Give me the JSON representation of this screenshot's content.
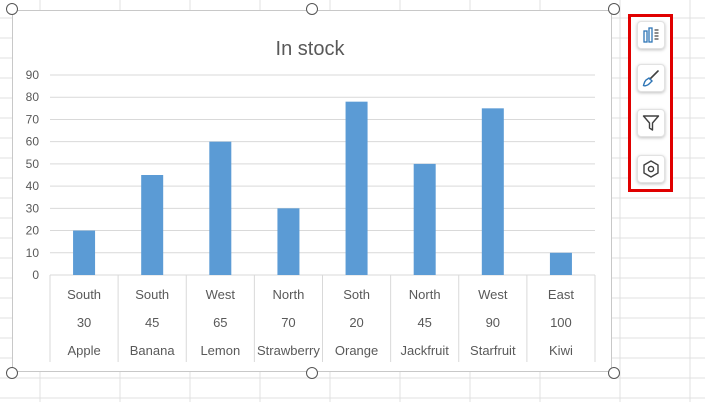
{
  "colors": {
    "bar": "#5b9bd5",
    "grid": "#d9d9d9",
    "axis_text": "#595959",
    "title_text": "#595959",
    "toolbar_highlight": "#e00000",
    "icon_blue": "#2e75b6",
    "icon_dark": "#404040"
  },
  "toolbar": {
    "buttons": [
      {
        "icon": "chart-elements-icon"
      },
      {
        "icon": "chart-styles-icon"
      },
      {
        "icon": "chart-filters-icon"
      },
      {
        "icon": "format-options-icon"
      }
    ]
  },
  "chart_data": {
    "type": "bar",
    "title": "In stock",
    "xlabel": "",
    "ylabel": "",
    "ylim": [
      0,
      90
    ],
    "yticks": [
      0,
      10,
      20,
      30,
      40,
      50,
      60,
      70,
      80,
      90
    ],
    "grid": true,
    "legend": "none",
    "categories": [
      [
        "South",
        "30",
        "Apple"
      ],
      [
        "South",
        "45",
        "Banana"
      ],
      [
        "West",
        "65",
        "Lemon"
      ],
      [
        "North",
        "70",
        "Strawberry"
      ],
      [
        "Soth",
        "20",
        "Orange"
      ],
      [
        "North",
        "45",
        "Jackfruit"
      ],
      [
        "West",
        "90",
        "Starfruit"
      ],
      [
        "East",
        "100",
        "Kiwi"
      ]
    ],
    "values": [
      20,
      45,
      60,
      30,
      78,
      50,
      75,
      10
    ]
  }
}
